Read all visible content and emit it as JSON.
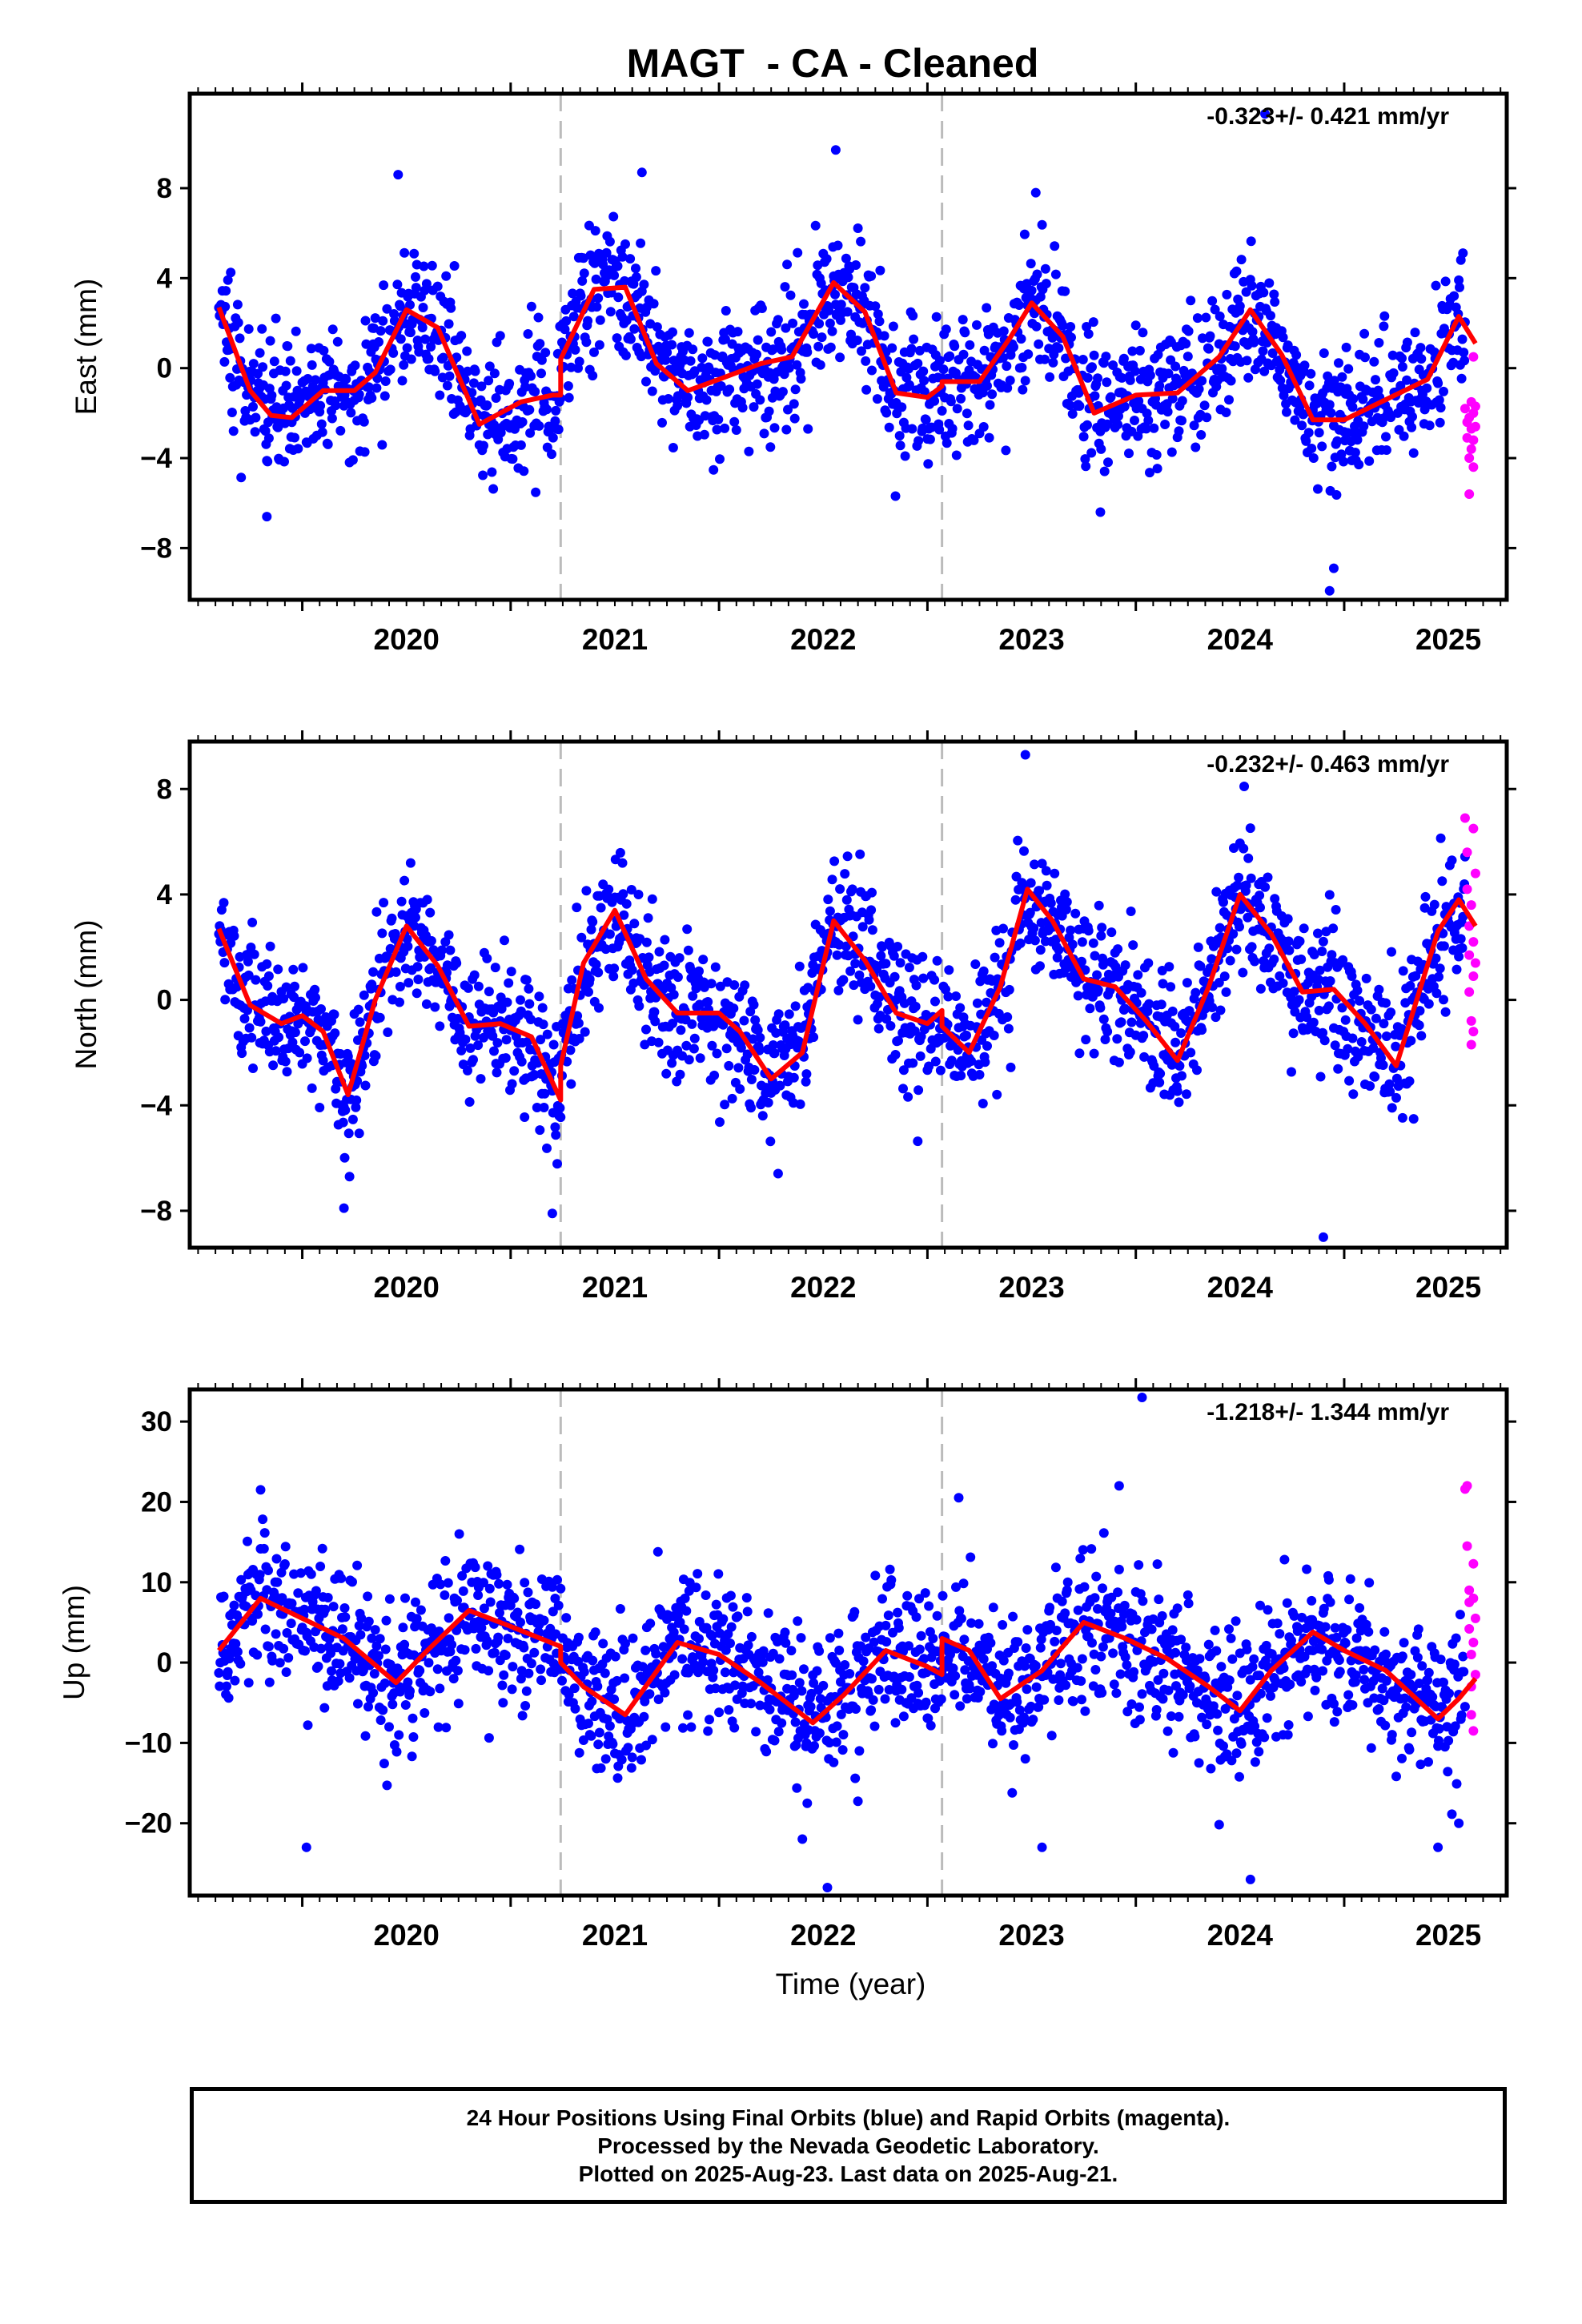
{
  "title": "MAGT  - CA - Cleaned",
  "footer": {
    "line1": "24 Hour Positions Using Final Orbits (blue) and Rapid Orbits (magenta).",
    "line2": "Processed by the Nevada Geodetic Laboratory.",
    "line3": "Plotted on 2025-Aug-23. Last data on 2025-Aug-21."
  },
  "colors": {
    "final": "#0000ff",
    "rapid": "#ff00ff",
    "model": "#ff0000",
    "offset_line": "#bbbbbb",
    "frame": "#000000"
  },
  "chart_data": [
    {
      "type": "scatter",
      "component": "East",
      "ylabel": "East (mm)",
      "xlabel": "",
      "rate_label": "-0.323+/- 0.421 mm/yr",
      "xlim": [
        2019.46,
        2025.78
      ],
      "ylim": [
        -10.3,
        12.2
      ],
      "yticks": [
        -8,
        -4,
        0,
        4,
        8
      ],
      "xticks": [
        2020,
        2021,
        2022,
        2023,
        2024,
        2025
      ],
      "xtick_labels": [
        "2020",
        "2021",
        "2022",
        "2023",
        "2024",
        "2025"
      ],
      "offsets": [
        2021.24,
        2023.07
      ],
      "series": [
        {
          "name": "Final Orbits",
          "style": "points",
          "data_start": 2019.6,
          "data_end": 2025.58,
          "scatter_sd": 1.5,
          "outliers": [
            [
              2019.83,
              -6.6
            ],
            [
              2020.46,
              8.6
            ],
            [
              2021.63,
              8.7
            ],
            [
              2022.56,
              9.7
            ],
            [
              2023.52,
              7.8
            ],
            [
              2023.83,
              -6.4
            ],
            [
              2024.62,
              11.3
            ],
            [
              2024.93,
              -9.9
            ],
            [
              2024.95,
              -8.9
            ]
          ]
        },
        {
          "name": "Rapid Orbits",
          "style": "points",
          "x": [
            2025.58,
            2025.59,
            2025.59,
            2025.6,
            2025.6,
            2025.6,
            2025.61,
            2025.61,
            2025.61,
            2025.62,
            2025.62,
            2025.62,
            2025.62,
            2025.63,
            2025.63
          ],
          "y": [
            -1.8,
            -2.4,
            -3.1,
            -5.6,
            -2.2,
            -4.0,
            -1.5,
            -3.6,
            -2.7,
            0.5,
            -4.4,
            -2.0,
            -3.2,
            -2.6,
            -1.7
          ]
        },
        {
          "name": "Model",
          "style": "line",
          "x": [
            2019.6,
            2019.75,
            2019.85,
            2019.95,
            2020.1,
            2020.25,
            2020.35,
            2020.5,
            2020.65,
            2020.85,
            2021.05,
            2021.2,
            2021.24,
            2021.24,
            2021.4,
            2021.55,
            2021.7,
            2021.85,
            2022.0,
            2022.2,
            2022.35,
            2022.55,
            2022.7,
            2022.85,
            2023.0,
            2023.07,
            2023.07,
            2023.25,
            2023.4,
            2023.5,
            2023.65,
            2023.8,
            2024.0,
            2024.2,
            2024.4,
            2024.55,
            2024.7,
            2024.85,
            2025.0,
            2025.2,
            2025.4,
            2025.55,
            2025.63
          ],
          "y": [
            2.7,
            -1.0,
            -2.1,
            -2.2,
            -1.0,
            -1.0,
            -0.2,
            2.6,
            1.8,
            -2.5,
            -1.5,
            -1.2,
            -1.2,
            0.4,
            3.5,
            3.6,
            0.2,
            -1.0,
            -0.5,
            0.2,
            0.5,
            3.8,
            2.5,
            -1.1,
            -1.3,
            -0.8,
            -0.6,
            -0.6,
            1.4,
            2.9,
            1.4,
            -2.0,
            -1.2,
            -1.1,
            0.5,
            2.6,
            0.6,
            -2.3,
            -2.3,
            -1.4,
            -0.5,
            2.3,
            1.1
          ]
        }
      ]
    },
    {
      "type": "scatter",
      "component": "North",
      "ylabel": "North (mm)",
      "xlabel": "",
      "rate_label": "-0.232+/- 0.463 mm/yr",
      "xlim": [
        2019.46,
        2025.78
      ],
      "ylim": [
        -9.4,
        9.8
      ],
      "yticks": [
        -8,
        -4,
        0,
        4,
        8
      ],
      "xticks": [
        2020,
        2021,
        2022,
        2023,
        2024,
        2025
      ],
      "xtick_labels": [
        "2020",
        "2021",
        "2022",
        "2023",
        "2024",
        "2025"
      ],
      "offsets": [
        2021.24,
        2023.07
      ],
      "series": [
        {
          "name": "Final Orbits",
          "style": "points",
          "data_start": 2019.6,
          "data_end": 2025.58,
          "scatter_sd": 1.3,
          "outliers": [
            [
              2020.2,
              -7.9
            ],
            [
              2021.2,
              -8.1
            ],
            [
              2023.47,
              9.3
            ],
            [
              2024.52,
              8.1
            ],
            [
              2024.9,
              -9.0
            ]
          ]
        },
        {
          "name": "Rapid Orbits",
          "style": "points",
          "x": [
            2025.58,
            2025.59,
            2025.59,
            2025.6,
            2025.6,
            2025.6,
            2025.61,
            2025.61,
            2025.61,
            2025.62,
            2025.62,
            2025.62,
            2025.62,
            2025.63,
            2025.63
          ],
          "y": [
            6.9,
            5.6,
            4.2,
            2.8,
            1.7,
            0.3,
            -0.8,
            -1.7,
            3.6,
            2.2,
            6.5,
            0.9,
            -1.2,
            4.8,
            1.4
          ]
        },
        {
          "name": "Model",
          "style": "line",
          "x": [
            2019.6,
            2019.75,
            2019.9,
            2020.0,
            2020.1,
            2020.22,
            2020.35,
            2020.5,
            2020.65,
            2020.8,
            2020.95,
            2021.1,
            2021.24,
            2021.24,
            2021.35,
            2021.5,
            2021.65,
            2021.8,
            2022.0,
            2022.1,
            2022.25,
            2022.4,
            2022.55,
            2022.7,
            2022.85,
            2023.0,
            2023.07,
            2023.07,
            2023.2,
            2023.35,
            2023.48,
            2023.6,
            2023.75,
            2023.9,
            2024.05,
            2024.2,
            2024.35,
            2024.5,
            2024.65,
            2024.8,
            2024.95,
            2025.1,
            2025.25,
            2025.45,
            2025.55,
            2025.63
          ],
          "y": [
            2.7,
            -0.2,
            -0.9,
            -0.6,
            -1.2,
            -3.6,
            0.0,
            2.8,
            1.3,
            -1.0,
            -0.9,
            -1.4,
            -3.8,
            -2.5,
            1.4,
            3.4,
            0.8,
            -0.5,
            -0.5,
            -1.2,
            -3.0,
            -2.0,
            3.0,
            1.5,
            -0.5,
            -0.9,
            -0.4,
            -1.0,
            -2.0,
            0.5,
            4.2,
            3.0,
            0.8,
            0.5,
            -0.8,
            -2.3,
            0.5,
            4.0,
            2.5,
            0.3,
            0.4,
            -0.9,
            -2.5,
            2.6,
            3.8,
            2.8
          ]
        }
      ]
    },
    {
      "type": "scatter",
      "component": "Up",
      "ylabel": "Up (mm)",
      "xlabel": "Time (year)",
      "rate_label": "-1.218+/- 1.344 mm/yr",
      "xlim": [
        2019.46,
        2025.78
      ],
      "ylim": [
        -29,
        34
      ],
      "yticks": [
        -20,
        -10,
        0,
        10,
        20,
        30
      ],
      "xticks": [
        2020,
        2021,
        2022,
        2023,
        2024,
        2025
      ],
      "xtick_labels": [
        "2020",
        "2021",
        "2022",
        "2023",
        "2024",
        "2025"
      ],
      "offsets": [
        2021.24,
        2023.07
      ],
      "series": [
        {
          "name": "Final Orbits",
          "style": "points",
          "data_start": 2019.6,
          "data_end": 2025.58,
          "scatter_sd": 4.5,
          "outliers": [
            [
              2020.02,
              -23
            ],
            [
              2022.52,
              -28
            ],
            [
              2023.55,
              -23
            ],
            [
              2024.55,
              -27
            ],
            [
              2025.45,
              -23
            ],
            [
              2025.55,
              -20
            ],
            [
              2024.03,
              33
            ],
            [
              2019.8,
              21.5
            ],
            [
              2023.92,
              22
            ]
          ]
        },
        {
          "name": "Rapid Orbits",
          "style": "points",
          "x": [
            2025.58,
            2025.59,
            2025.59,
            2025.6,
            2025.6,
            2025.6,
            2025.61,
            2025.61,
            2025.61,
            2025.62,
            2025.62,
            2025.62,
            2025.62,
            2025.63,
            2025.63
          ],
          "y": [
            21.6,
            22.0,
            14.5,
            9.0,
            7.5,
            4.2,
            1.0,
            -3.0,
            -6.5,
            -8.5,
            12.3,
            8.0,
            2.5,
            -1.5,
            5.5
          ]
        },
        {
          "name": "Model",
          "style": "line",
          "x": [
            2019.6,
            2019.8,
            2020.0,
            2020.2,
            2020.45,
            2020.6,
            2020.8,
            2021.0,
            2021.24,
            2021.24,
            2021.35,
            2021.55,
            2021.8,
            2022.0,
            2022.2,
            2022.45,
            2022.6,
            2022.8,
            2023.0,
            2023.07,
            2023.07,
            2023.2,
            2023.35,
            2023.55,
            2023.75,
            2023.95,
            2024.15,
            2024.35,
            2024.5,
            2024.65,
            2024.85,
            2025.0,
            2025.2,
            2025.45,
            2025.55,
            2025.63
          ],
          "y": [
            1.5,
            8.0,
            5.5,
            3.0,
            -2.5,
            1.5,
            6.5,
            4.5,
            2.0,
            0.0,
            -3.0,
            -6.5,
            2.5,
            1.0,
            -2.5,
            -7.5,
            -4.0,
            1.5,
            -0.5,
            -1.5,
            3.0,
            1.5,
            -4.5,
            -1.0,
            5.0,
            3.0,
            0.5,
            -3.0,
            -6.0,
            -1.0,
            3.8,
            1.5,
            -1.0,
            -7.0,
            -4.5,
            -2.0
          ]
        }
      ]
    }
  ]
}
